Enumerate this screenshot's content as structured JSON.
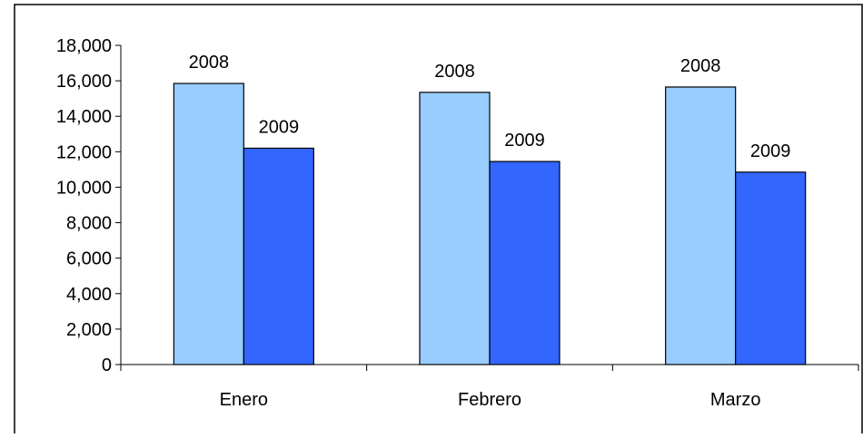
{
  "chart_data": {
    "type": "bar",
    "title": "",
    "xlabel": "",
    "ylabel": "",
    "categories": [
      "Enero",
      "Febrero",
      "Marzo"
    ],
    "series": [
      {
        "name": "2008",
        "values": [
          15850,
          15350,
          15650
        ],
        "color": "#99CCFF"
      },
      {
        "name": "2009",
        "values": [
          12200,
          11450,
          10850
        ],
        "color": "#3366FF"
      }
    ],
    "ylim": [
      0,
      18000
    ],
    "yticks": [
      0,
      2000,
      4000,
      6000,
      8000,
      10000,
      12000,
      14000,
      16000,
      18000
    ],
    "ytick_labels": [
      "0",
      "2,000",
      "4,000",
      "6,000",
      "8,000",
      "10,000",
      "12,000",
      "14,000",
      "16,000",
      "18,000"
    ],
    "data_labels": "series-name",
    "grid": false,
    "legend": "none"
  }
}
